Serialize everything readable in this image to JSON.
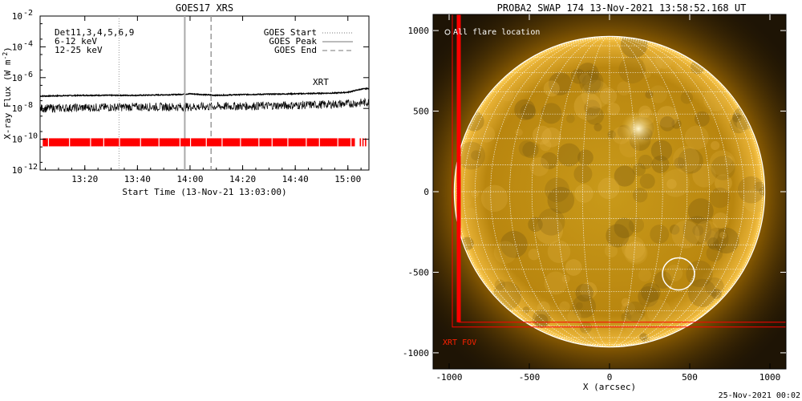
{
  "footer_timestamp": "25-Nov-2021 00:02",
  "chart_data": [
    {
      "type": "line",
      "title": "GOES17 XRS",
      "xlabel": "Start Time (13-Nov-21 13:03:00)",
      "ylabel": "X-ray Flux (W m^-2)",
      "ylabel_main": "X-ray Flux (W m",
      "ylabel_exp": "-2",
      "ylabel_close": ")",
      "ylog": true,
      "xlim_minutes": [
        3,
        128
      ],
      "x_ticks": [
        {
          "min": 20,
          "label": "13:20"
        },
        {
          "min": 40,
          "label": "13:40"
        },
        {
          "min": 60,
          "label": "14:00"
        },
        {
          "min": 80,
          "label": "14:20"
        },
        {
          "min": 100,
          "label": "14:40"
        },
        {
          "min": 120,
          "label": "15:00"
        }
      ],
      "y_ticks": [
        {
          "exp": -2,
          "label": "10",
          "sup": "-2"
        },
        {
          "exp": -4,
          "label": "10",
          "sup": "-4"
        },
        {
          "exp": -6,
          "label": "10",
          "sup": "-6"
        },
        {
          "exp": -8,
          "label": "10",
          "sup": "-8"
        },
        {
          "exp": -10,
          "label": "10",
          "sup": "-10"
        },
        {
          "exp": -12,
          "label": "10",
          "sup": "-12"
        }
      ],
      "ylim_log10": [
        -12,
        -2
      ],
      "upper_left_labels": [
        {
          "text": "Det11,3,4,5,6,9",
          "color": "#000000"
        },
        {
          "text": "6-12 keV",
          "color": "#cc00cc"
        },
        {
          "text": "12-25 keV",
          "color": "#00cc00"
        }
      ],
      "series": [
        {
          "name": "long channel",
          "color": "#000000",
          "x_min": [
            3,
            20,
            40,
            55,
            60,
            70,
            80,
            100,
            115,
            120,
            125,
            128
          ],
          "y_log10": [
            -7.2,
            -7.15,
            -7.15,
            -7.1,
            -7.05,
            -7.15,
            -7.1,
            -7.05,
            -7.0,
            -6.95,
            -6.75,
            -6.7
          ]
        },
        {
          "name": "short channel",
          "color": "#000000",
          "x_min": [
            3,
            20,
            40,
            60,
            80,
            100,
            120,
            128
          ],
          "y_log10": [
            -8.0,
            -7.95,
            -7.9,
            -7.9,
            -7.85,
            -7.8,
            -7.7,
            -7.6
          ]
        }
      ],
      "goes_markers": [
        {
          "name": "GOES Start",
          "x_min": 33,
          "style": "dotted"
        },
        {
          "name": "GOES Peak",
          "x_min": 58,
          "style": "solid"
        },
        {
          "name": "GOES End",
          "x_min": 68,
          "style": "dashed"
        }
      ],
      "xrt_label": "XRT",
      "xrt_band_log10": -10.2,
      "xrt_gaps_min": [
        6,
        14,
        22,
        27,
        33,
        41,
        48,
        56,
        60,
        66,
        72,
        79,
        86,
        91,
        97,
        104,
        109,
        116,
        121,
        124
      ]
    },
    {
      "type": "image",
      "title": "PROBA2 SWAP 174 13-Nov-2021 13:58:52.168 UT",
      "xlabel": "X (arcsec)",
      "ylabel": "",
      "xlim": [
        -1100,
        1100
      ],
      "ylim": [
        -1100,
        1100
      ],
      "x_ticks": [
        -1000,
        -500,
        0,
        500,
        1000
      ],
      "y_ticks": [
        -1000,
        -500,
        0,
        500,
        1000
      ],
      "solar_radius_arcsec": 968,
      "legend_text": "All flare location",
      "fov_label": "XRT FOV",
      "fov_box": {
        "x0": -940,
        "x1": 1100,
        "y0": -810,
        "y1": 1100
      },
      "flare_circle": {
        "x": 430,
        "y": -510,
        "r": 100
      },
      "active_region": {
        "x": 180,
        "y": 390
      }
    }
  ]
}
